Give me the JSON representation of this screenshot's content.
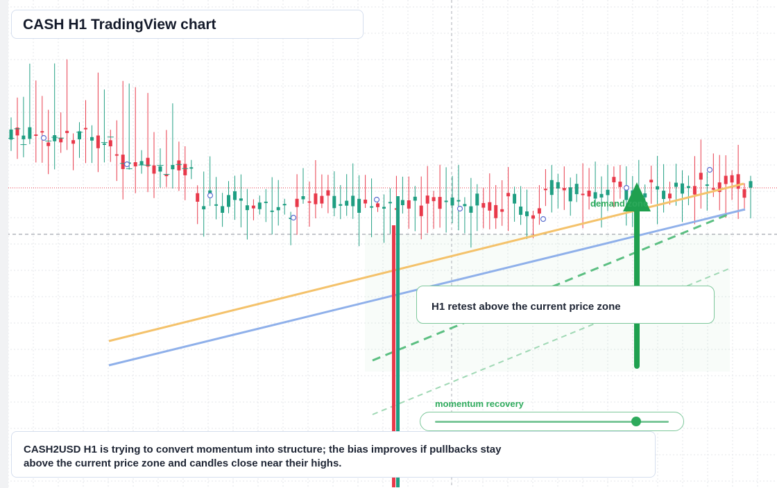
{
  "title": "CASH H1 TradingView chart",
  "note": "H1 retest above the current price zone",
  "caption": "CASH2USD H1 is trying to convert momentum into structure; the bias improves if pullbacks stay above the current price zone and candles close near their highs.",
  "zone_label": "demand zone",
  "momentum": {
    "label": "momentum recovery",
    "level": 0.86
  },
  "colors": {
    "up": "#1f9e82",
    "down": "#e8394a",
    "accent_green": "#2eaa5c",
    "trend_orange": "#f4c26b",
    "trend_blue": "#8fb0ea",
    "grid": "#e3e6ea"
  },
  "chart_data": {
    "type": "candlestick",
    "timeframe": "H1",
    "symbol": "CASH2USD",
    "candle_count": 120,
    "seed": 11
  }
}
